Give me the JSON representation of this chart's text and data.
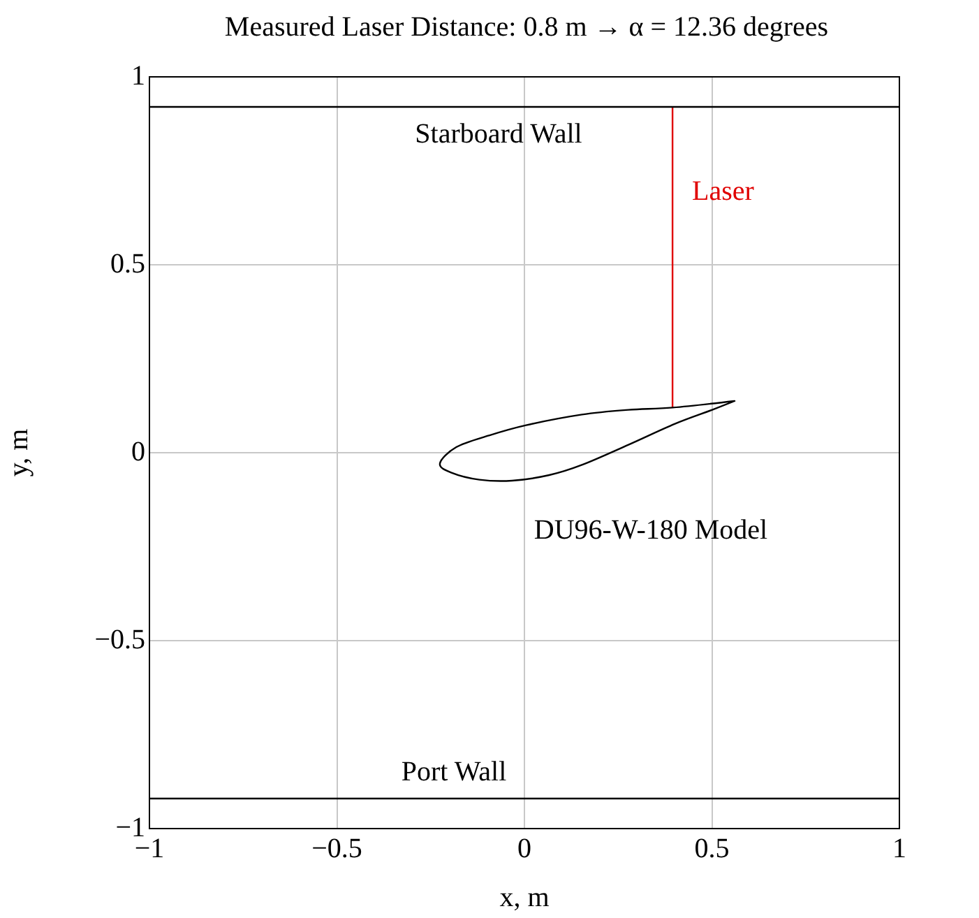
{
  "chart_data": {
    "type": "line",
    "title": "Measured Laser Distance: 0.8 m → α = 12.36 degrees",
    "xlabel": "x, m",
    "ylabel": "y, m",
    "xlim": [
      -1,
      1
    ],
    "ylim": [
      -1,
      1
    ],
    "xticks": [
      {
        "value": -1,
        "label": "−1"
      },
      {
        "value": -0.5,
        "label": "−0.5"
      },
      0,
      0.5,
      1
    ],
    "yticks": [
      {
        "value": -1,
        "label": "−1"
      },
      {
        "value": -0.5,
        "label": "−0.5"
      },
      0,
      0.5,
      1
    ],
    "grid": true,
    "legend": false,
    "marker": "none",
    "line_style": "solid",
    "series": [
      {
        "name": "Starboard Wall",
        "color": "#000000",
        "x": [
          -1,
          1
        ],
        "values": [
          0.92,
          0.92
        ]
      },
      {
        "name": "Port Wall",
        "color": "#000000",
        "x": [
          -1,
          1
        ],
        "values": [
          -0.92,
          -0.92
        ]
      },
      {
        "name": "Laser",
        "color": "#e00000",
        "x": [
          0.395,
          0.395
        ],
        "values": [
          0.92,
          0.12
        ]
      }
    ],
    "annotations": [
      "DU96-W-180 Model"
    ]
  }
}
